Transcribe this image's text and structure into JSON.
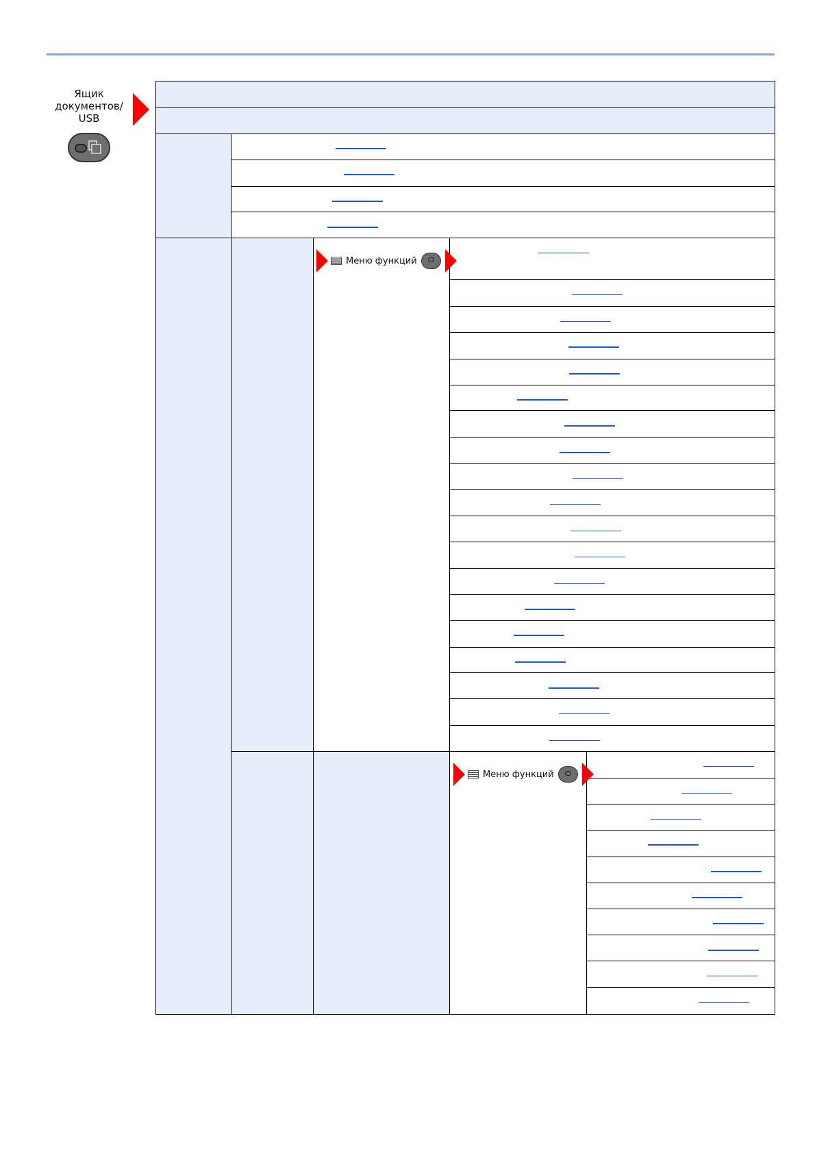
{
  "sidebar": {
    "label_lines": [
      "Ящик",
      "документов/",
      "USB"
    ],
    "button_icon": "document-box-icon"
  },
  "menus": [
    {
      "label": "Меню функций",
      "icon": "list-icon"
    },
    {
      "label": "Меню функций",
      "icon": "list-icon"
    }
  ],
  "colors": {
    "header_fill": "#e6edfb",
    "link": "#1a55e0",
    "arrow": "#ff0000",
    "rule": "#7fa7e6"
  }
}
